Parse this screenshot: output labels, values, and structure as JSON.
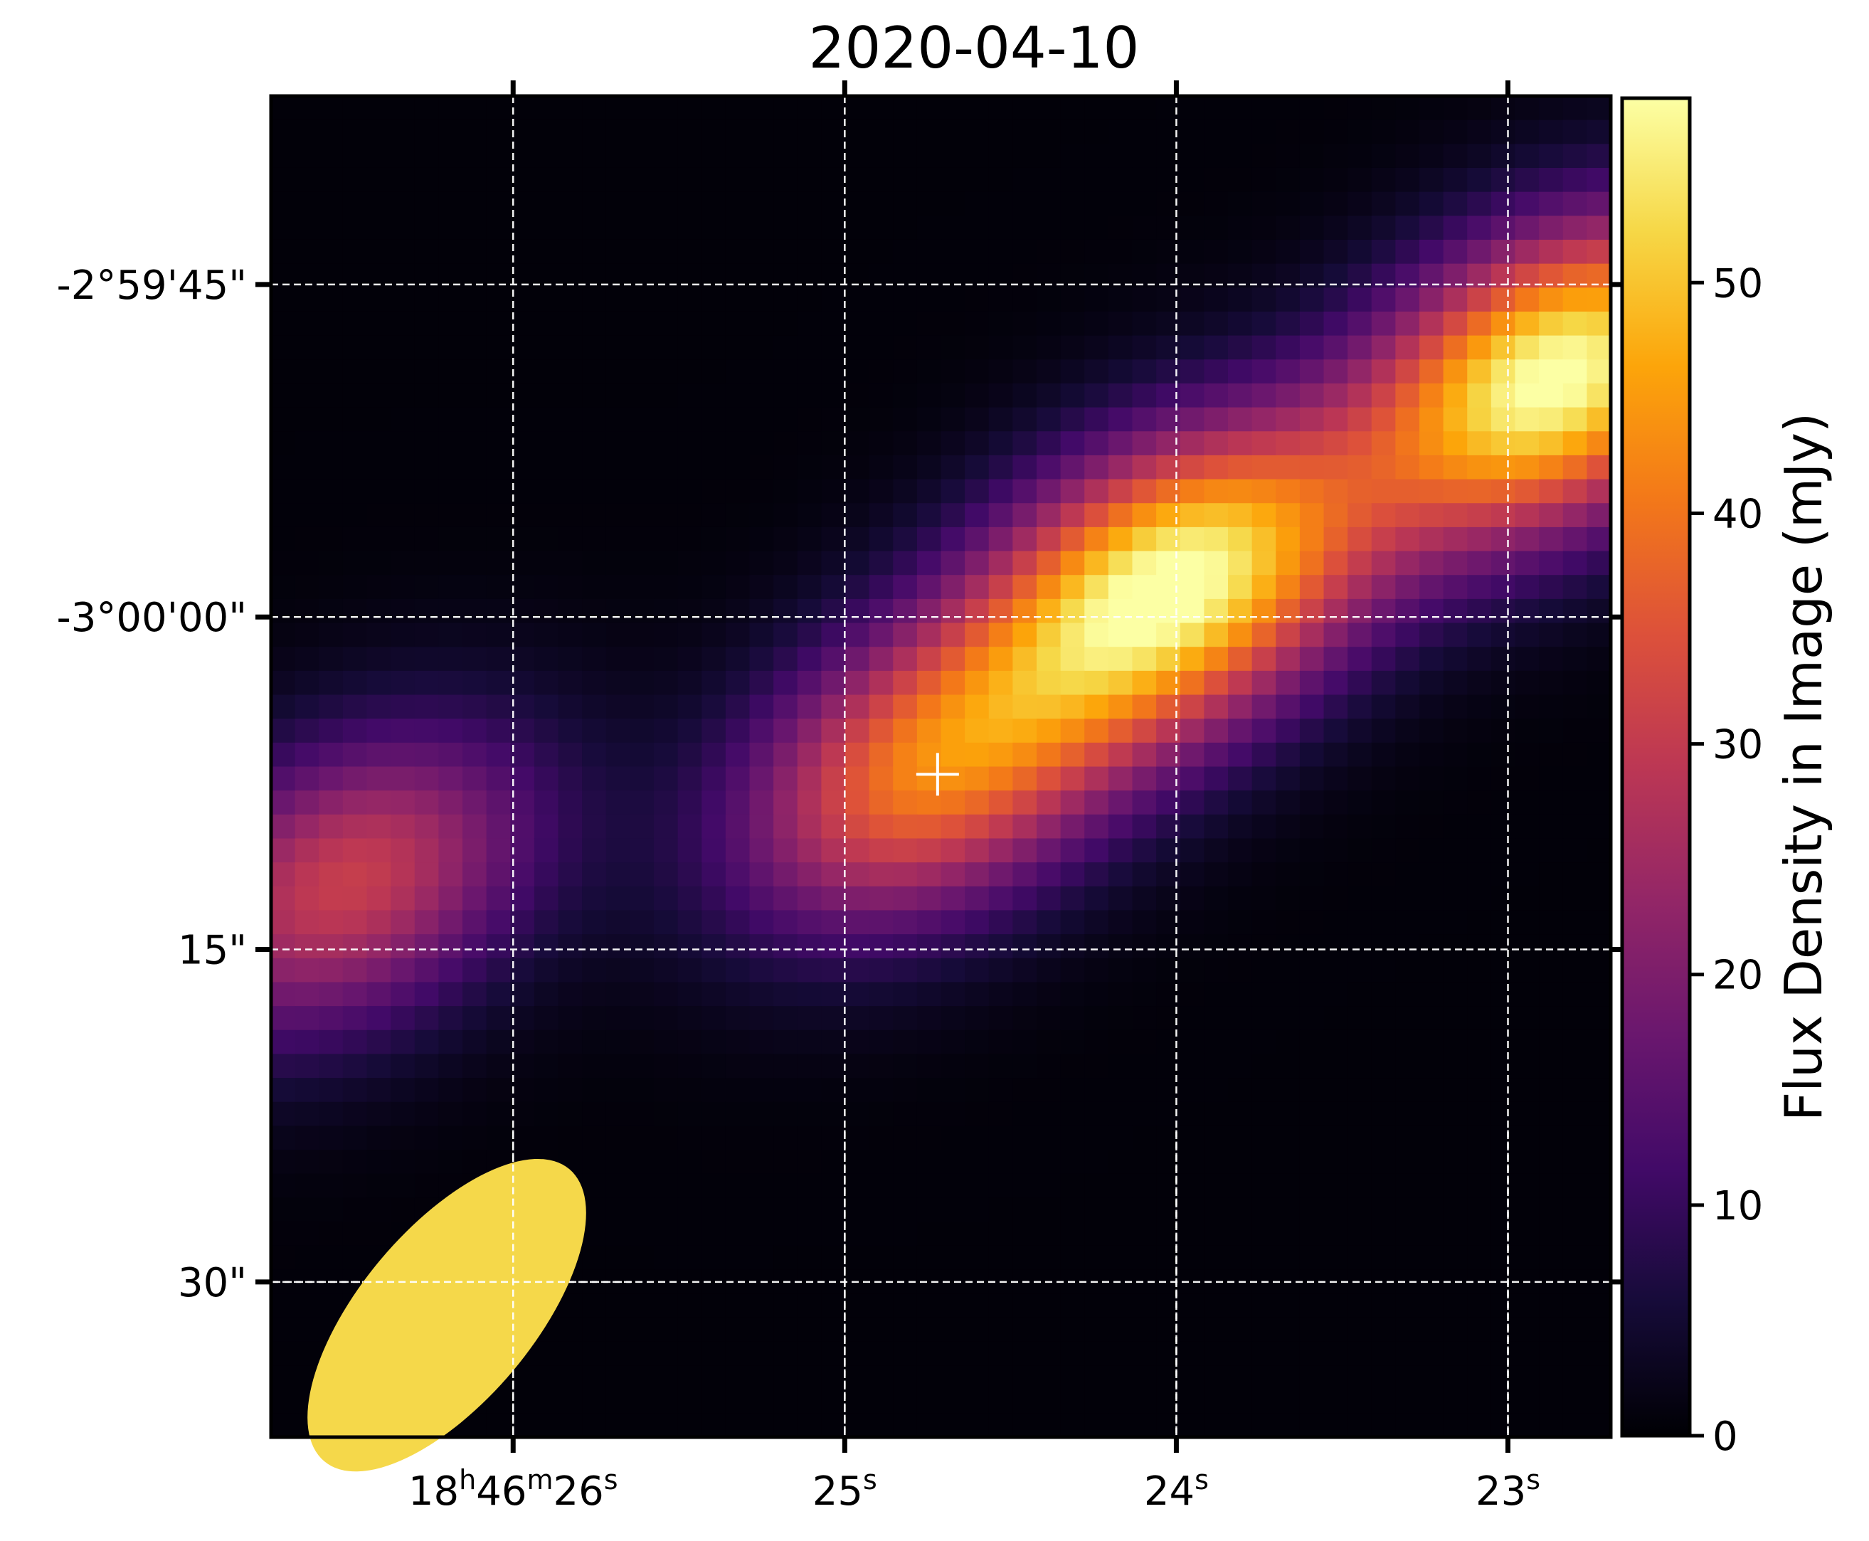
{
  "chart_data": {
    "type": "heatmap",
    "title": "2020-04-10",
    "colormap": "inferno",
    "x_ticks": [
      {
        "label": "18h46m26s",
        "parts": [
          [
            "18",
            false
          ],
          [
            "h",
            true
          ],
          [
            "46",
            false
          ],
          [
            "m",
            true
          ],
          [
            "26",
            false
          ],
          [
            "s",
            true
          ]
        ],
        "ra_sec": 26
      },
      {
        "label": "25s",
        "parts": [
          [
            "25",
            false
          ],
          [
            "s",
            true
          ]
        ],
        "ra_sec": 25
      },
      {
        "label": "24s",
        "parts": [
          [
            "24",
            false
          ],
          [
            "s",
            true
          ]
        ],
        "ra_sec": 24
      },
      {
        "label": "23s",
        "parts": [
          [
            "23",
            false
          ],
          [
            "s",
            true
          ]
        ],
        "ra_sec": 23
      }
    ],
    "y_ticks": [
      {
        "label": "-2°59'45\"",
        "dec_offset_arcsec": -15
      },
      {
        "label": "-3°00'00\"",
        "dec_offset_arcsec": 0
      },
      {
        "label": "15\"",
        "dec_offset_arcsec": 15
      },
      {
        "label": "30\"",
        "dec_offset_arcsec": 30
      }
    ],
    "x_range_ra_sec": [
      26.73,
      22.69
    ],
    "y_range_dec_offset_arcsec": [
      -23.5,
      37.0
    ],
    "grid": true,
    "colorbar": {
      "label": "Flux Density in Image (mJy)",
      "ticks": [
        "0",
        "10",
        "20",
        "30",
        "40",
        "50"
      ],
      "tick_values": [
        0,
        10,
        20,
        30,
        40,
        50
      ],
      "range": [
        0,
        58
      ]
    },
    "emission_components": [
      {
        "ra_sec": 22.85,
        "dec_offset_arcsec": -10.8,
        "peak_mjy": 58
      },
      {
        "ra_sec": 24.0,
        "dec_offset_arcsec": -1.5,
        "peak_mjy": 56
      },
      {
        "ra_sec": 24.75,
        "dec_offset_arcsec": 7.0,
        "peak_mjy": 38
      },
      {
        "ra_sec": 26.5,
        "dec_offset_arcsec": 12.0,
        "peak_mjy": 30
      }
    ],
    "marker": {
      "symbol": "+",
      "ra_sec": 24.72,
      "dec_offset_arcsec": 7.1,
      "color": "#ffffff"
    },
    "beam": {
      "ra_sec": 26.2,
      "dec_offset_arcsec": 31.5,
      "major_arcsec": 8.6,
      "minor_arcsec": 3.9,
      "position_angle_deg": 40,
      "color": "#f5d84a"
    }
  }
}
